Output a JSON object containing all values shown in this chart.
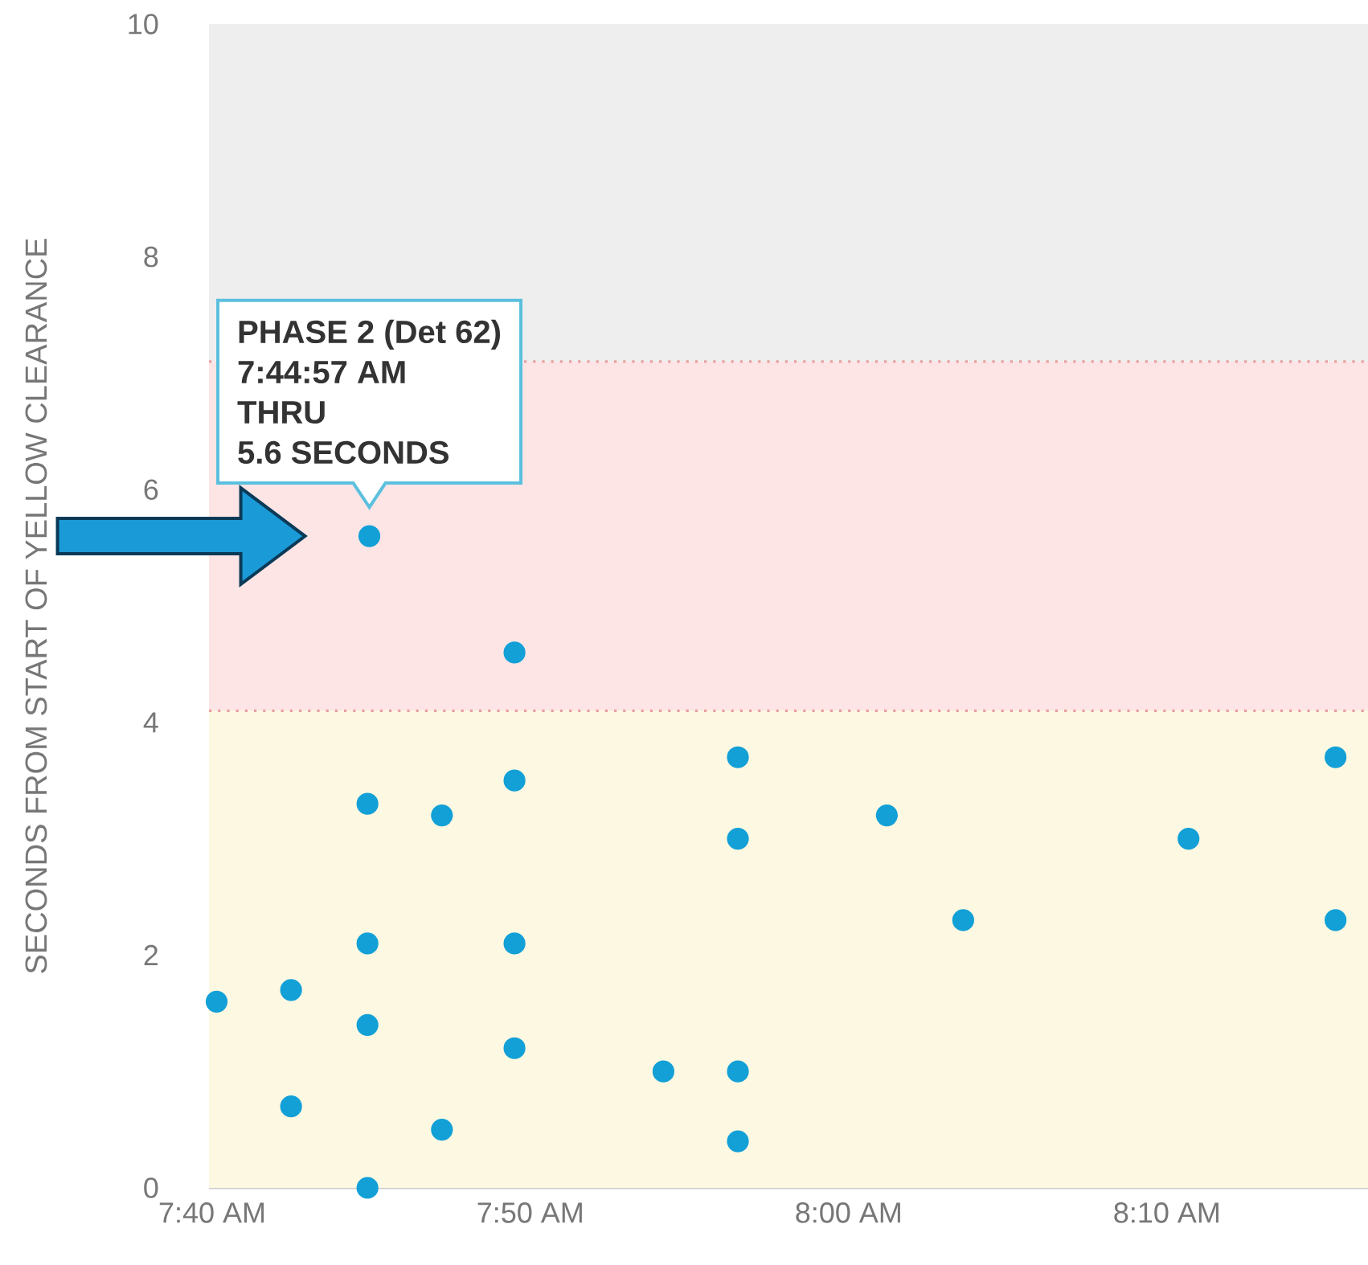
{
  "chart_data": {
    "type": "scatter",
    "ylabel": "SECONDS FROM START OF YELLOW CLEARANCE",
    "x": [
      7.669,
      7.708,
      7.708,
      7.748,
      7.748,
      7.748,
      7.748,
      7.749,
      7.787,
      7.787,
      7.825,
      7.825,
      7.825,
      7.825,
      7.903,
      7.942,
      7.942,
      7.942,
      7.942,
      8.02,
      8.06,
      8.178,
      8.255,
      8.255
    ],
    "values": [
      1.6,
      1.7,
      0.7,
      0.0,
      1.4,
      2.1,
      3.3,
      5.6,
      0.5,
      3.2,
      4.6,
      3.5,
      2.1,
      1.2,
      1.0,
      3.7,
      3.0,
      1.0,
      0.4,
      3.2,
      2.3,
      3.0,
      3.7,
      2.3
    ],
    "color": "#12a0d7",
    "marker": "circle",
    "xlim": [
      7.665,
      8.272
    ],
    "xticks": [
      {
        "value": 7.6667,
        "label": "7:40 AM"
      },
      {
        "value": 7.8333,
        "label": "7:50 AM"
      },
      {
        "value": 8.0,
        "label": "8:00 AM"
      },
      {
        "value": 8.1667,
        "label": "8:10 AM"
      }
    ],
    "ylim": [
      0,
      10
    ],
    "yticks": [
      0,
      2,
      4,
      6,
      8,
      10
    ],
    "bands": [
      {
        "axis": "y",
        "from": 0,
        "to": 4.1,
        "color": "#fdf8e2"
      },
      {
        "axis": "y",
        "from": 4.1,
        "to": 7.1,
        "color": "#fde5e6"
      },
      {
        "axis": "y",
        "from": 7.1,
        "to": 10,
        "color": "#eeeeee"
      }
    ],
    "ref_lines": [
      {
        "axis": "y",
        "value": 4.1,
        "color": "#e8a0a0",
        "line_style": "dotted"
      },
      {
        "axis": "y",
        "value": 7.1,
        "color": "#e8a0a0",
        "line_style": "dotted"
      }
    ],
    "annotations": [
      "PHASE 2 (Det 62)",
      "7:44:57 AM",
      "THRU",
      {
        "text": "5.6 SECONDS",
        "x": 7.749,
        "y": 5.6
      }
    ]
  }
}
